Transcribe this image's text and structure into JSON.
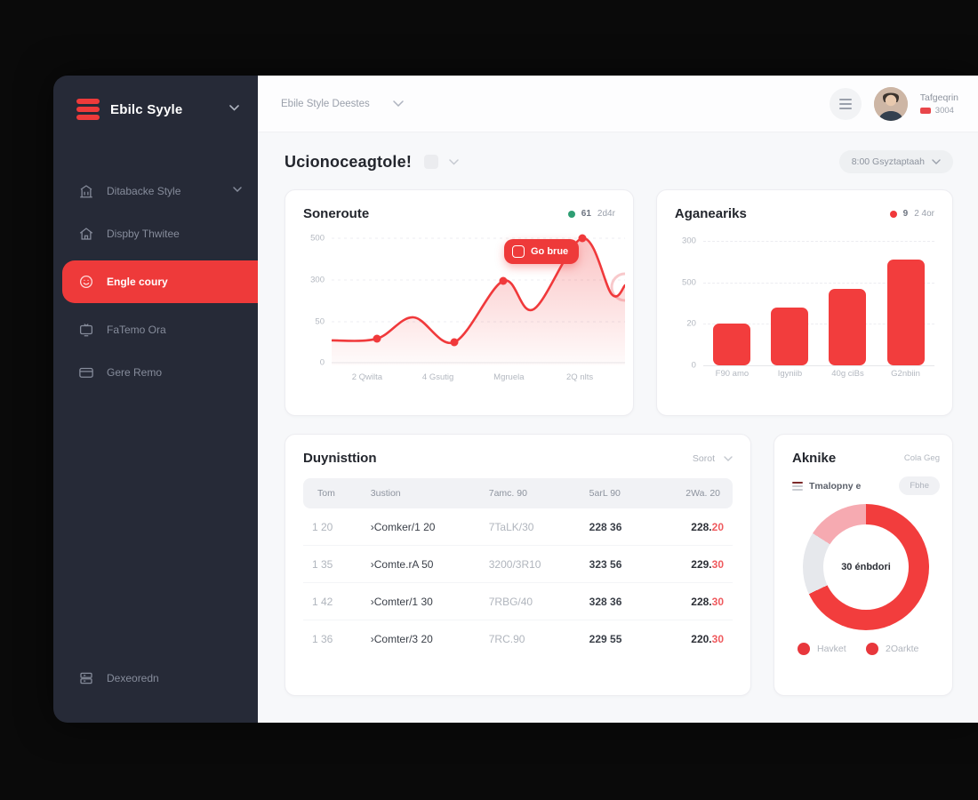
{
  "accent": "#ee3a3a",
  "sidebar": {
    "logo_title": "Ebilc Syyle",
    "items": [
      {
        "label": "Ditabacke Style"
      },
      {
        "label": "Dispby Thwitee"
      },
      {
        "label": "Engle coury"
      },
      {
        "label": "FaTemo Ora"
      },
      {
        "label": "Gere Remo"
      }
    ],
    "footer_item": {
      "label": "Dexeoredn"
    }
  },
  "header": {
    "breadcrumb": "Ebile Style Deestes",
    "user_name": "Tafgeqrin",
    "user_badge": "3004"
  },
  "page": {
    "title": "Ucionoceagtole!",
    "period_selector": "8:00 Gsyztaptaah"
  },
  "cards": {
    "line_chart": {
      "title": "Soneroute",
      "legend_value": "61",
      "legend_secondary": "2d4r",
      "legend_color": "#2e9e73",
      "tooltip": "Go brue",
      "color": "#f0393b",
      "y_ticks": [
        "500",
        "300",
        "50",
        "0"
      ],
      "x_ticks": [
        "2 Qwilta",
        "4 Gsutig",
        "Mgruela",
        "2Q nlts"
      ],
      "points": [
        [
          0,
          120
        ],
        [
          51,
          118
        ],
        [
          92,
          94
        ],
        [
          138,
          122
        ],
        [
          193,
          53
        ],
        [
          227,
          85
        ],
        [
          282,
          5
        ],
        [
          315,
          68
        ],
        [
          330,
          58
        ]
      ],
      "marker_indices": [
        1,
        3,
        4,
        6
      ]
    },
    "bar_chart": {
      "title": "Aganeariks",
      "legend_value": "9",
      "legend_secondary": "2 4or",
      "legend_color": "#f0393b",
      "color": "#f23d3d",
      "y_ticks": [
        "300",
        "500",
        "20",
        "0"
      ],
      "x_ticks": [
        "F90 amo",
        "Igyniib",
        "40g ciBs",
        "G2nbiin"
      ],
      "values": [
        100,
        140,
        185,
        255
      ],
      "ymax": 300
    },
    "table": {
      "title": "Duynisttion",
      "sort_label": "Sorot",
      "columns": [
        "Tom",
        "3ustion",
        "7amc. 90",
        "5arL 90",
        "2Wa. 20"
      ],
      "rows": [
        {
          "c1": "1 20",
          "c2": "›Comker/1 20",
          "c3": "7TaLK/30",
          "c4": "228 36",
          "c5": "228.",
          "c5r": "20"
        },
        {
          "c1": "1 35",
          "c2": "›Comte.rA 50",
          "c3": "3200/3R10",
          "c4": "323 56",
          "c5": "229.",
          "c5r": "30"
        },
        {
          "c1": "1 42",
          "c2": "›Comter/1 30",
          "c3": "7RBG/40",
          "c4": "328 36",
          "c5": "228.",
          "c5r": "30"
        },
        {
          "c1": "1 36",
          "c2": "›Comter/3 20",
          "c3": "7RC.90",
          "c4": "229 55",
          "c5": "220.",
          "c5r": "30"
        }
      ]
    },
    "donut": {
      "title": "Aknike",
      "meta": "Cola Geg",
      "filter_label": "Tmalopny e",
      "filter_pill": "Fbhe",
      "center_label": "30 énbdori",
      "segments": [
        {
          "value": 68,
          "color": "#f23d3d"
        },
        {
          "value": 16,
          "color": "#e6e8ec"
        },
        {
          "value": 16,
          "color": "#f6aab1"
        }
      ],
      "legend": [
        {
          "label": "Havket",
          "color": "#e8373c"
        },
        {
          "label": "2Oarkte",
          "color": "#e8373c"
        }
      ]
    }
  }
}
